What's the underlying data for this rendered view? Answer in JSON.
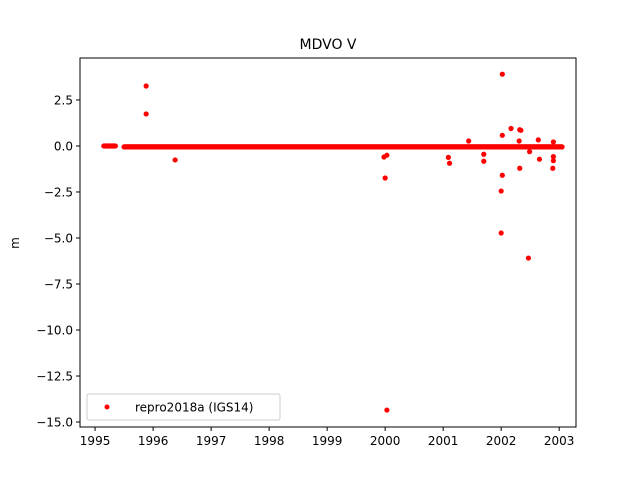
{
  "chart_data": {
    "type": "scatter",
    "title": "MDVO V",
    "xlabel": "",
    "ylabel": "m",
    "xlim": [
      1994.74,
      2003.29
    ],
    "ylim": [
      -15.27,
      4.78
    ],
    "xticks": [
      1995,
      1996,
      1997,
      1998,
      1999,
      2000,
      2001,
      2002,
      2003
    ],
    "xtick_labels": [
      "1995",
      "1996",
      "1997",
      "1998",
      "1999",
      "2000",
      "2001",
      "2002",
      "2003"
    ],
    "yticks": [
      2.5,
      0,
      -2.5,
      -5,
      -7.5,
      -10,
      -12.5,
      -15
    ],
    "ytick_labels": [
      "2.5",
      "0.0",
      "−2.5",
      "−5.0",
      "−7.5",
      "−10.0",
      "−12.5",
      "−15.0"
    ],
    "grid": false,
    "legend": {
      "placement": "lower-left",
      "entries": [
        "repro2018a (IGS14)"
      ]
    },
    "series": [
      {
        "name": "repro2018a (IGS14)",
        "color": "#ff0000",
        "dense_segments": [
          {
            "x_start": 1995.15,
            "x_end": 1995.35,
            "y": 0.0,
            "step": 0.01
          },
          {
            "x_start": 1995.5,
            "x_end": 2003.05,
            "y": -0.05,
            "step": 0.01
          }
        ],
        "points": [
          [
            1995.88,
            3.26
          ],
          [
            1995.88,
            1.74
          ],
          [
            1996.38,
            -0.76
          ],
          [
            1999.98,
            -0.6
          ],
          [
            2000.03,
            -0.5
          ],
          [
            2000.0,
            -1.74
          ],
          [
            2000.03,
            -14.35
          ],
          [
            2001.09,
            -0.62
          ],
          [
            2001.11,
            -0.94
          ],
          [
            2001.44,
            0.27
          ],
          [
            2001.7,
            -0.45
          ],
          [
            2001.7,
            -0.83
          ],
          [
            2002.02,
            3.9
          ],
          [
            2002.02,
            0.58
          ],
          [
            2002.02,
            -1.59
          ],
          [
            2002.0,
            -2.45
          ],
          [
            2002.0,
            -4.73
          ],
          [
            2002.17,
            0.95
          ],
          [
            2002.32,
            0.88
          ],
          [
            2002.34,
            0.85
          ],
          [
            2002.31,
            0.27
          ],
          [
            2002.32,
            -1.21
          ],
          [
            2002.47,
            -6.09
          ],
          [
            2002.49,
            -0.31
          ],
          [
            2002.64,
            0.33
          ],
          [
            2002.66,
            -0.72
          ],
          [
            2002.9,
            0.22
          ],
          [
            2002.9,
            -0.58
          ],
          [
            2002.9,
            -0.8
          ],
          [
            2002.89,
            -1.21
          ]
        ]
      }
    ]
  }
}
